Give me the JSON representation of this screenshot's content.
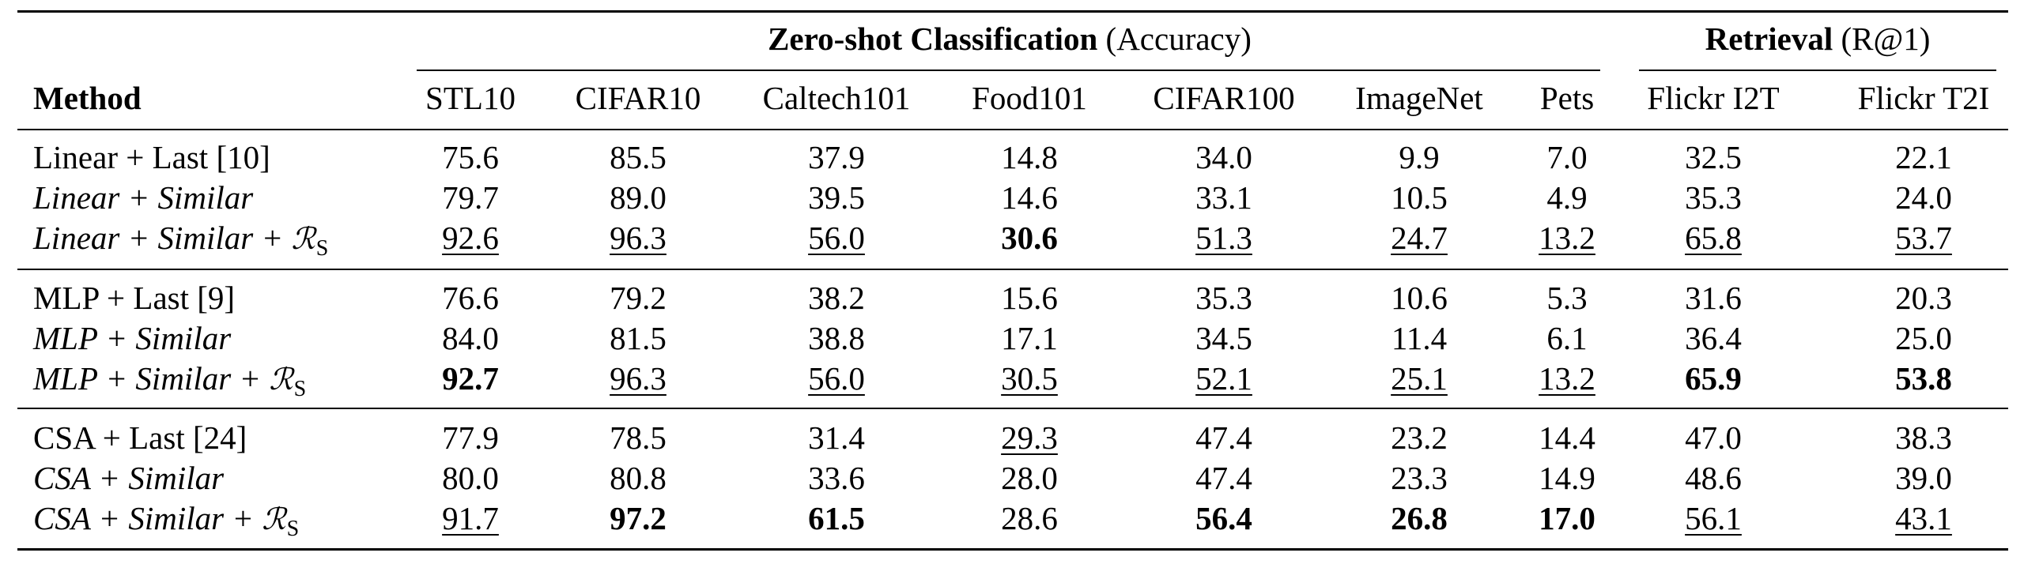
{
  "groups": {
    "zero_shot": {
      "title": "Zero-shot Classification",
      "metric": "(Accuracy)"
    },
    "retrieval": {
      "title": "Retrieval",
      "metric": "(R@1)"
    }
  },
  "header": {
    "method": "Method",
    "columns": [
      "STL10",
      "CIFAR10",
      "Caltech101",
      "Food101",
      "CIFAR100",
      "ImageNet",
      "Pets",
      "Flickr I2T",
      "Flickr T2I"
    ]
  },
  "regularizer": {
    "symbol": "ℛ",
    "subscript": "S"
  },
  "rows": [
    {
      "method": {
        "base": "Linear",
        "suffix": " + Last [10]"
      },
      "values": [
        "75.6",
        "85.5",
        "37.9",
        "14.8",
        "34.0",
        "9.9",
        "7.0",
        "32.5",
        "22.1"
      ]
    },
    {
      "method": {
        "base": "Linear",
        "suffix": " + Similar"
      },
      "values": [
        "79.7",
        "89.0",
        "39.5",
        "14.6",
        "33.1",
        "10.5",
        "4.9",
        "35.3",
        "24.0"
      ]
    },
    {
      "method": {
        "base": "Linear",
        "suffix": " + Similar + "
      },
      "values": [
        "92.6",
        "96.3",
        "56.0",
        "30.6",
        "51.3",
        "24.7",
        "13.2",
        "65.8",
        "53.7"
      ]
    },
    {
      "method": {
        "base": "MLP",
        "suffix": " + Last [9]"
      },
      "values": [
        "76.6",
        "79.2",
        "38.2",
        "15.6",
        "35.3",
        "10.6",
        "5.3",
        "31.6",
        "20.3"
      ]
    },
    {
      "method": {
        "base": "MLP",
        "suffix": " + Similar"
      },
      "values": [
        "84.0",
        "81.5",
        "38.8",
        "17.1",
        "34.5",
        "11.4",
        "6.1",
        "36.4",
        "25.0"
      ]
    },
    {
      "method": {
        "base": "MLP",
        "suffix": " + Similar + "
      },
      "values": [
        "92.7",
        "96.3",
        "56.0",
        "30.5",
        "52.1",
        "25.1",
        "13.2",
        "65.9",
        "53.8"
      ]
    },
    {
      "method": {
        "base": "CSA",
        "suffix": " + Last [24]"
      },
      "values": [
        "77.9",
        "78.5",
        "31.4",
        "29.3",
        "47.4",
        "23.2",
        "14.4",
        "47.0",
        "38.3"
      ]
    },
    {
      "method": {
        "base": "CSA",
        "suffix": " + Similar"
      },
      "values": [
        "80.0",
        "80.8",
        "33.6",
        "28.0",
        "47.4",
        "23.3",
        "14.9",
        "48.6",
        "39.0"
      ]
    },
    {
      "method": {
        "base": "CSA",
        "suffix": " + Similar + "
      },
      "values": [
        "91.7",
        "97.2",
        "61.5",
        "28.6",
        "56.4",
        "26.8",
        "17.0",
        "56.1",
        "43.1"
      ]
    }
  ]
}
